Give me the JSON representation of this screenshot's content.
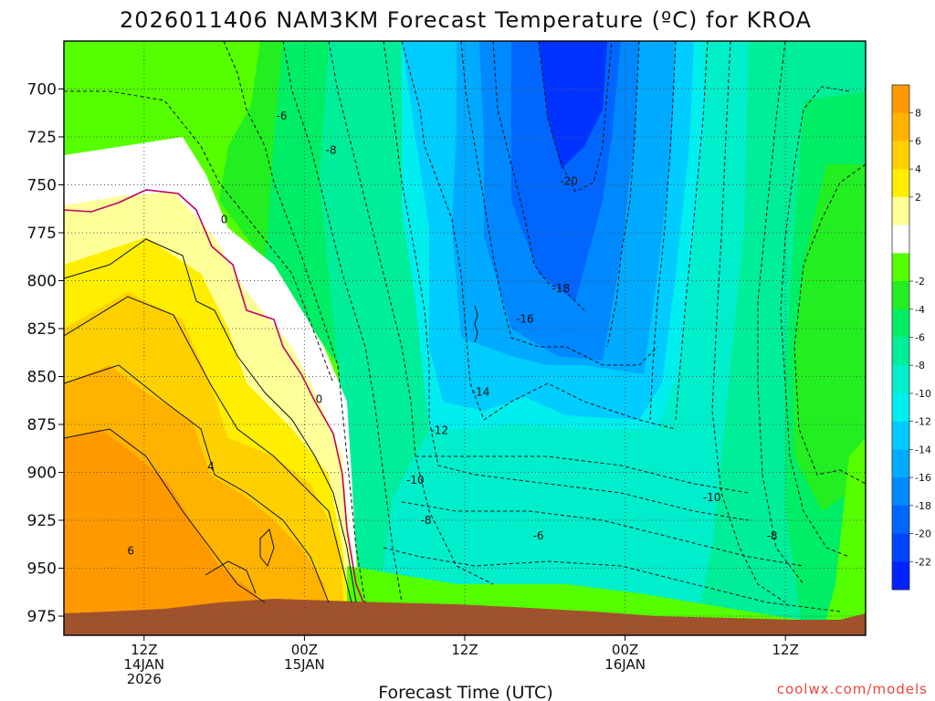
{
  "title": "2026011406 NAM3KM Forecast Temperature (ºC) for KROA",
  "chart_data": {
    "type": "heatmap",
    "title": "2026011406 NAM3KM Forecast Temperature (ºC) for KROA",
    "xlabel": "Forecast Time (UTC)",
    "ylabel": "",
    "y_ticks": [
      700,
      725,
      750,
      775,
      800,
      825,
      850,
      875,
      900,
      925,
      950,
      975
    ],
    "ylim": [
      675,
      985
    ],
    "x_ticks": [
      {
        "hour": 6,
        "line1": "12Z",
        "line2": "14JAN",
        "line3": "2026"
      },
      {
        "hour": 18,
        "line1": "00Z",
        "line2": "15JAN",
        "line3": ""
      },
      {
        "hour": 30,
        "line1": "12Z",
        "line2": "",
        "line3": ""
      },
      {
        "hour": 42,
        "line1": "00Z",
        "line2": "16JAN",
        "line3": ""
      },
      {
        "hour": 54,
        "line1": "12Z",
        "line2": "",
        "line3": ""
      }
    ],
    "xlim": [
      0,
      60
    ],
    "grid": true,
    "colorbar": {
      "levels": [
        8,
        6,
        4,
        2,
        -2,
        -4,
        -6,
        -8,
        -10,
        -12,
        -14,
        -16,
        -18,
        -20,
        -22
      ],
      "colors": [
        "#ff9900",
        "#ffb300",
        "#ffd000",
        "#ffee00",
        "#ffff99",
        "#ffffff",
        "#55ff00",
        "#22ee22",
        "#00ee66",
        "#00ee99",
        "#00eecc",
        "#00eeee",
        "#00ccff",
        "#00aaff",
        "#0088ff",
        "#0066ff",
        "#0044ff",
        "#0022ff"
      ]
    },
    "contour_labels": [
      {
        "text": "-6",
        "hour": 16.3,
        "p": 714
      },
      {
        "text": "-8",
        "hour": 20,
        "p": 732
      },
      {
        "text": "-20",
        "hour": 37.8,
        "p": 748
      },
      {
        "text": "0",
        "hour": 12,
        "p": 768
      },
      {
        "text": "-18",
        "hour": 37.2,
        "p": 804
      },
      {
        "text": "-16",
        "hour": 34.5,
        "p": 820
      },
      {
        "text": "-14",
        "hour": 31.2,
        "p": 858
      },
      {
        "text": "-12",
        "hour": 28.1,
        "p": 878
      },
      {
        "text": "0",
        "hour": 19.1,
        "p": 862
      },
      {
        "text": "4",
        "hour": 11,
        "p": 897
      },
      {
        "text": "-10",
        "hour": 26.3,
        "p": 904
      },
      {
        "text": "-10",
        "hour": 48.5,
        "p": 913
      },
      {
        "text": "-8",
        "hour": 27.1,
        "p": 925
      },
      {
        "text": "-6",
        "hour": 35.5,
        "p": 933
      },
      {
        "text": "-8",
        "hour": 53,
        "p": 933
      },
      {
        "text": "6",
        "hour": 5,
        "p": 941
      }
    ]
  },
  "credit": "coolwx.com/models"
}
